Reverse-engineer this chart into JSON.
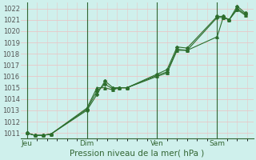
{
  "xlabel": "Pression niveau de la mer( hPa )",
  "bg_color": "#cff0ec",
  "plot_bg_color": "#cff0ec",
  "grid_color": "#e8c8c8",
  "vline_color": "#336633",
  "line_color": "#2d6e2d",
  "ylim": [
    1010.5,
    1022.5
  ],
  "yticks": [
    1011,
    1012,
    1013,
    1014,
    1015,
    1016,
    1017,
    1018,
    1019,
    1020,
    1021,
    1022
  ],
  "day_labels": [
    "Jeu",
    "Dim",
    "Ven",
    "Sam"
  ],
  "day_positions": [
    0.0,
    3.0,
    6.5,
    9.5
  ],
  "vline_positions": [
    0.0,
    3.0,
    6.5,
    9.5
  ],
  "series": [
    [
      1011.0,
      1010.8,
      1010.8,
      1010.9,
      1013.1,
      1014.7,
      1015.3,
      1014.9,
      1015.0,
      1015.0,
      1016.1,
      1016.4,
      1018.4,
      1018.3,
      1021.2,
      1021.2,
      1021.0,
      1022.0,
      1021.5
    ],
    [
      1011.0,
      1010.8,
      1010.8,
      1010.9,
      1013.0,
      1014.4,
      1015.6,
      1015.0,
      1015.0,
      1015.0,
      1016.2,
      1016.6,
      1018.6,
      1018.5,
      1021.3,
      1021.3,
      1021.0,
      1022.2,
      1021.6
    ],
    [
      1011.0,
      1010.8,
      1010.8,
      1010.9,
      1013.2,
      1015.0,
      1015.0,
      1014.8,
      1015.0,
      1015.0,
      1016.0,
      1016.3,
      1018.3,
      1018.3,
      1019.5,
      1021.2,
      1021.0,
      1021.9,
      1021.4
    ]
  ],
  "x_positions": [
    0.0,
    0.4,
    0.8,
    1.2,
    3.0,
    3.5,
    3.9,
    4.3,
    4.6,
    5.0,
    6.5,
    7.0,
    7.5,
    8.0,
    9.5,
    9.8,
    10.1,
    10.5,
    10.9
  ],
  "xlim": [
    -0.3,
    11.3
  ]
}
